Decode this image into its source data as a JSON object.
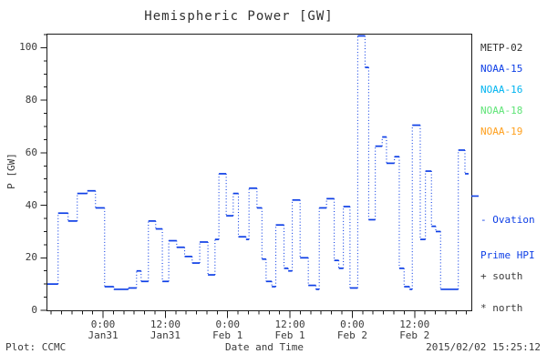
{
  "title": "Hemispheric Power [GW]",
  "axes": {
    "y_label": "P [GW]",
    "x_label": "Date and Time",
    "y_ticks": [
      0,
      20,
      40,
      60,
      80,
      100
    ],
    "y_minor_step": 5,
    "x_ticks": [
      {
        "hour": 0,
        "time": "0:00",
        "date": "Jan31"
      },
      {
        "hour": 12,
        "time": "12:00",
        "date": "Jan31"
      },
      {
        "hour": 24,
        "time": "0:00",
        "date": "Feb 1"
      },
      {
        "hour": 36,
        "time": "12:00",
        "date": "Feb 1"
      },
      {
        "hour": 48,
        "time": "0:00",
        "date": "Feb 2"
      },
      {
        "hour": 60,
        "time": "12:00",
        "date": "Feb 2"
      }
    ],
    "x_minor_step_hours": 2
  },
  "footer": {
    "left": "Plot: CCMC",
    "right": "2015/02/02 15:25:12"
  },
  "legend": {
    "satellites": [
      {
        "label": "METP-02",
        "color": "#303030"
      },
      {
        "label": "NOAA-15",
        "color": "#0d3ee6"
      },
      {
        "label": "NOAA-16",
        "color": "#00b4f0"
      },
      {
        "label": "NOAA-18",
        "color": "#5fe477"
      },
      {
        "label": "NOAA-19",
        "color": "#ffa01e"
      }
    ],
    "model_line1": "- Ovation",
    "model_line2": "Prime HPI",
    "model_color": "#0d3ee6",
    "model_marker_gw": 43.5,
    "south_label": "+ south",
    "north_label": "* north"
  },
  "chart_data": {
    "type": "line",
    "title": "Hemispheric Power [GW]",
    "xlabel": "Date and Time",
    "ylabel": "P [GW]",
    "ylim": [
      0,
      105
    ],
    "xlim_hours": [
      -10.72,
      70.93
    ],
    "x_unit": "hours since 2015-01-31 00:00 UT",
    "grid": false,
    "legend_position": "right-outside",
    "series": [
      {
        "name": "Ovation Prime HPI",
        "color": "#0d3ee6",
        "style": "step-levels solid, dotted risers",
        "segments_t0_t1_gw": [
          [
            -10.72,
            -8.66,
            10
          ],
          [
            -8.66,
            -6.73,
            37
          ],
          [
            -6.73,
            -4.97,
            34
          ],
          [
            -4.97,
            -3.04,
            44.5
          ],
          [
            -3.04,
            -1.46,
            45.5
          ],
          [
            -1.46,
            0.3,
            39
          ],
          [
            0.3,
            2.06,
            9
          ],
          [
            2.06,
            4.87,
            8
          ],
          [
            4.87,
            6.45,
            8.5
          ],
          [
            6.45,
            7.33,
            15
          ],
          [
            7.33,
            8.73,
            11
          ],
          [
            8.73,
            10.14,
            34
          ],
          [
            10.14,
            11.42,
            31
          ],
          [
            11.42,
            12.65,
            11
          ],
          [
            12.65,
            14.18,
            26.5
          ],
          [
            14.18,
            15.71,
            24
          ],
          [
            15.71,
            17.16,
            20.5
          ],
          [
            17.16,
            18.62,
            18
          ],
          [
            18.62,
            20.2,
            26
          ],
          [
            20.2,
            21.56,
            13.5
          ],
          [
            21.56,
            22.31,
            27
          ],
          [
            22.31,
            23.72,
            52
          ],
          [
            23.72,
            25.07,
            36
          ],
          [
            25.07,
            26.07,
            44.5
          ],
          [
            26.07,
            27.53,
            28
          ],
          [
            27.53,
            28.11,
            27
          ],
          [
            28.11,
            29.64,
            46.5
          ],
          [
            29.64,
            30.6,
            39
          ],
          [
            30.6,
            31.4,
            19.5
          ],
          [
            31.4,
            32.5,
            11
          ],
          [
            32.5,
            33.27,
            9
          ],
          [
            33.27,
            34.85,
            32.5
          ],
          [
            34.85,
            35.66,
            16
          ],
          [
            35.66,
            36.44,
            15
          ],
          [
            36.44,
            37.95,
            42
          ],
          [
            37.95,
            39.53,
            20
          ],
          [
            39.53,
            41.0,
            9.5
          ],
          [
            41.0,
            41.64,
            8
          ],
          [
            41.64,
            43.04,
            39
          ],
          [
            43.04,
            44.52,
            42.5
          ],
          [
            44.52,
            45.4,
            19
          ],
          [
            45.4,
            46.28,
            16
          ],
          [
            46.28,
            47.56,
            39.5
          ],
          [
            47.56,
            49.05,
            8.5
          ],
          [
            49.05,
            50.46,
            104.5
          ],
          [
            50.46,
            51.16,
            92.5
          ],
          [
            51.16,
            52.43,
            34.5
          ],
          [
            52.43,
            53.76,
            62.5
          ],
          [
            53.76,
            54.59,
            66
          ],
          [
            54.59,
            56.12,
            56
          ],
          [
            56.12,
            57.05,
            58.5
          ],
          [
            57.05,
            57.98,
            16
          ],
          [
            57.98,
            59.03,
            9
          ],
          [
            59.03,
            59.56,
            8
          ],
          [
            59.56,
            61.09,
            70.5
          ],
          [
            61.09,
            62.09,
            27
          ],
          [
            62.09,
            63.25,
            53
          ],
          [
            63.25,
            64.08,
            32
          ],
          [
            64.08,
            65.01,
            30
          ],
          [
            65.01,
            68.42,
            8
          ],
          [
            68.42,
            69.7,
            61
          ],
          [
            69.7,
            70.4,
            52
          ]
        ]
      }
    ]
  },
  "colors": {
    "line": "#0d3ee6",
    "frame": "#1a1a1a",
    "text": "#3a3a3a"
  }
}
